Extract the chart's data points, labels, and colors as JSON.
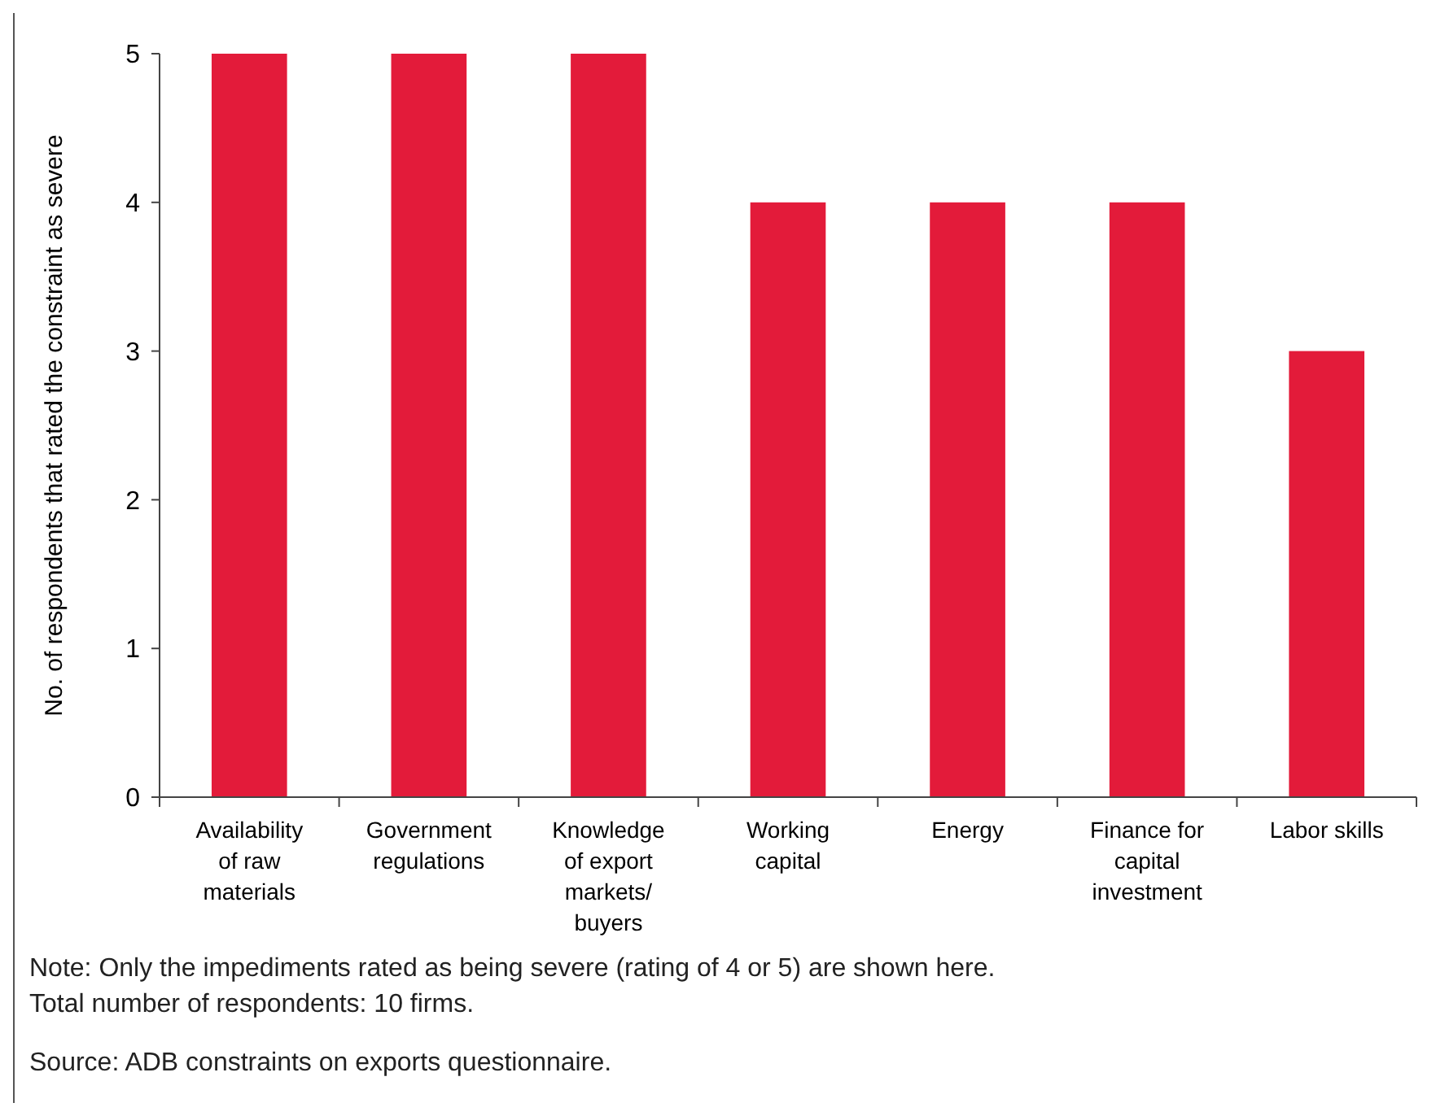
{
  "chart_data": {
    "type": "bar",
    "ylabel": "No. of respondents that rated the constraint as severe",
    "categories": [
      "Availability of raw materials",
      "Government regulations",
      "Knowledge of export markets/buyers",
      "Working capital",
      "Energy",
      "Finance for capital investment",
      "Labor skills"
    ],
    "values": [
      5,
      5,
      5,
      4,
      4,
      4,
      3
    ],
    "color": "#e31b3a",
    "ylim": [
      0,
      5
    ],
    "yticks": [
      0,
      1,
      2,
      3,
      4,
      5
    ],
    "grid": false,
    "annotations": [
      "Note: Only the impediments rated as being severe (rating of 4 or 5) are shown here. Total number of respondents: 10 firms.",
      "Source: ADB constraints on exports questionnaire."
    ]
  }
}
